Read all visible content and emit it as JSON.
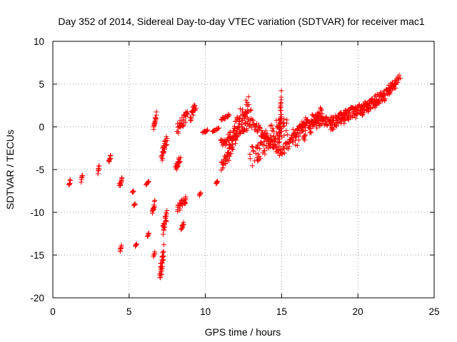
{
  "chart_data": {
    "type": "scatter",
    "title": "Day 352 of 2014, Sidereal Day-to-day VTEC variation (SDTVAR) for receiver mac1",
    "xlabel": "GPS time / hours",
    "ylabel": "SDTVAR / TECUs",
    "xlim": [
      0,
      25
    ],
    "ylim": [
      -20,
      10
    ],
    "xticks": [
      0,
      5,
      10,
      15,
      20,
      25
    ],
    "yticks": [
      -20,
      -15,
      -10,
      -5,
      0,
      5,
      10
    ],
    "xtick_labels": [
      "0",
      "5",
      "10",
      "15",
      "20",
      "25"
    ],
    "ytick_labels": [
      "-20",
      "-15",
      "-10",
      "-5",
      "0",
      "5",
      "10"
    ],
    "grid": true,
    "marker": "plus",
    "color": "#ff0000",
    "series": [
      {
        "name": "SDTVAR",
        "clusters": [
          {
            "x": [
              1.05,
              1.15
            ],
            "y": [
              -7.2,
              -6.0
            ]
          },
          {
            "x": [
              1.85,
              1.95
            ],
            "y": [
              -6.5,
              -5.6
            ]
          },
          {
            "x": [
              2.95,
              3.05
            ],
            "y": [
              -5.5,
              -4.4
            ]
          },
          {
            "x": [
              3.65,
              3.8
            ],
            "y": [
              -4.5,
              -3.2
            ]
          },
          {
            "x": [
              4.35,
              4.55
            ],
            "y": [
              -7.3,
              -5.7
            ]
          },
          {
            "x": [
              4.4,
              4.5
            ],
            "y": [
              -14.8,
              -13.7
            ]
          },
          {
            "x": [
              5.2,
              5.3
            ],
            "y": [
              -7.8,
              -7.4
            ]
          },
          {
            "x": [
              5.3,
              5.4
            ],
            "y": [
              -9.3,
              -8.9
            ]
          },
          {
            "x": [
              5.4,
              5.5
            ],
            "y": [
              -14.0,
              -13.6
            ]
          },
          {
            "x": [
              6.1,
              6.3
            ],
            "y": [
              -6.8,
              -6.2
            ]
          },
          {
            "x": [
              6.2,
              6.3
            ],
            "y": [
              -12.9,
              -12.3
            ]
          },
          {
            "x": [
              6.5,
              6.7
            ],
            "y": [
              -10.5,
              -8.6
            ]
          },
          {
            "x": [
              6.6,
              6.7
            ],
            "y": [
              -15.3,
              -14.5
            ]
          },
          {
            "x": [
              6.6,
              6.8
            ],
            "y": [
              -0.3,
              2.1
            ]
          },
          {
            "x": [
              7.0,
              7.3
            ],
            "y": [
              -18.5,
              -13.5
            ]
          },
          {
            "x": [
              7.2,
              7.5
            ],
            "y": [
              -12.7,
              -9.5
            ]
          },
          {
            "x": [
              7.1,
              7.5
            ],
            "y": [
              -4.3,
              -0.4
            ]
          },
          {
            "x": [
              8.0,
              8.4
            ],
            "y": [
              -5.4,
              -3.2
            ]
          },
          {
            "x": [
              8.1,
              8.8
            ],
            "y": [
              -10.0,
              -8.0
            ]
          },
          {
            "x": [
              8.4,
              8.6
            ],
            "y": [
              -12.2,
              -11.0
            ]
          },
          {
            "x": [
              8.1,
              8.9
            ],
            "y": [
              -1.0,
              2.2
            ]
          },
          {
            "x": [
              9.0,
              9.4
            ],
            "y": [
              0.2,
              3.3
            ]
          },
          {
            "x": [
              9.6,
              9.7
            ],
            "y": [
              -8.1,
              -7.6
            ]
          },
          {
            "x": [
              9.8,
              10.2
            ],
            "y": [
              -0.8,
              -0.3
            ]
          },
          {
            "x": [
              10.7,
              10.8
            ],
            "y": [
              -6.7,
              -6.3
            ]
          },
          {
            "x": [
              10.4,
              10.9
            ],
            "y": [
              -0.6,
              -0.1
            ]
          },
          {
            "x": [
              11.0,
              11.8
            ],
            "y": [
              -5.2,
              -2.0
            ]
          },
          {
            "x": [
              11.0,
              11.6
            ],
            "y": [
              0.6,
              1.6
            ]
          },
          {
            "x": [
              11.5,
              13.0
            ],
            "y": [
              -3.0,
              3.9
            ]
          },
          {
            "x": [
              12.8,
              15.5
            ],
            "y": [
              -4.9,
              1.8
            ]
          },
          {
            "x": [
              14.8,
              15.0
            ],
            "y": [
              -3.0,
              4.3
            ]
          },
          {
            "x": [
              15.5,
              18.0
            ],
            "y": [
              -2.5,
              2.5
            ]
          },
          {
            "x": [
              18.0,
              20.0
            ],
            "y": [
              -0.5,
              2.6
            ]
          },
          {
            "x": [
              19.8,
              21.9
            ],
            "y": [
              1.0,
              4.1
            ]
          },
          {
            "x": [
              21.9,
              22.8
            ],
            "y": [
              3.8,
              6.2
            ]
          }
        ],
        "trend_x": [
          1.0,
          3.0,
          6.5,
          9.0,
          11.0,
          13.0,
          15.0,
          16.5,
          18.5,
          20.0,
          22.5
        ],
        "trend_y": [
          -6.5,
          -5.0,
          -9.0,
          -3.0,
          -2.0,
          0.5,
          -3.0,
          0.5,
          0.8,
          2.0,
          4.5
        ]
      }
    ]
  }
}
